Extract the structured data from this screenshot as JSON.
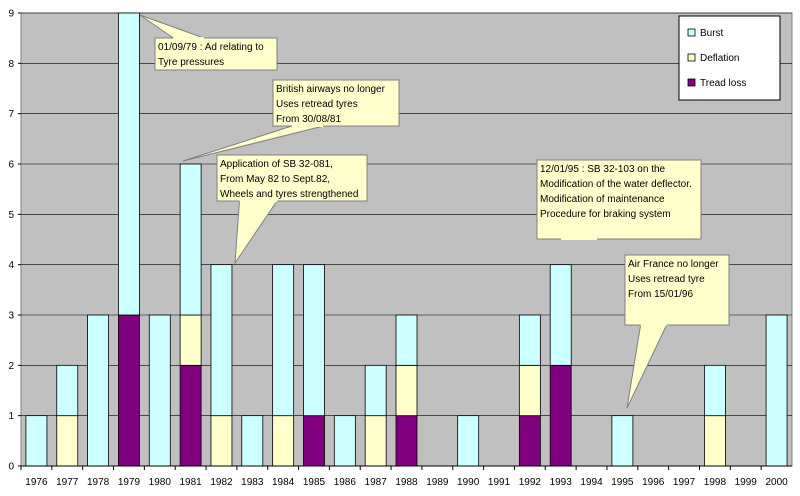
{
  "chart_data": {
    "type": "bar",
    "stacked": true,
    "categories": [
      "1976",
      "1977",
      "1978",
      "1979",
      "1980",
      "1981",
      "1982",
      "1983",
      "1984",
      "1985",
      "1986",
      "1987",
      "1988",
      "1989",
      "1990",
      "1991",
      "1992",
      "1993",
      "1994",
      "1995",
      "1996",
      "1997",
      "1998",
      "1999",
      "2000"
    ],
    "series": [
      {
        "name": "Tread loss",
        "color": "#800080",
        "values": [
          0,
          0,
          0,
          3,
          0,
          2,
          0,
          0,
          0,
          1,
          0,
          0,
          1,
          0,
          0,
          0,
          1,
          2,
          0,
          0,
          0,
          0,
          0,
          0,
          0
        ]
      },
      {
        "name": "Deflation",
        "color": "#FFFFCC",
        "values": [
          0,
          1,
          0,
          0,
          0,
          1,
          1,
          0,
          1,
          0,
          0,
          1,
          1,
          0,
          0,
          0,
          1,
          0,
          0,
          0,
          0,
          0,
          1,
          0,
          0
        ]
      },
      {
        "name": "Burst",
        "color": "#CCFFFF",
        "values": [
          1,
          1,
          3,
          6,
          3,
          3,
          3,
          1,
          3,
          3,
          1,
          1,
          1,
          0,
          1,
          0,
          1,
          2,
          0,
          1,
          0,
          0,
          1,
          0,
          3
        ]
      }
    ],
    "legend_order": [
      "Burst",
      "Deflation",
      "Tread loss"
    ],
    "ylim": [
      0,
      9
    ],
    "yticks": [
      "0",
      "1",
      "2",
      "3",
      "4",
      "5",
      "6",
      "7",
      "8",
      "9"
    ],
    "grid": true,
    "legend_position": "top-right",
    "plot_background": "#C0C0C0",
    "callout_fill": "#FFFFCC",
    "annotations": [
      {
        "category": "1979",
        "value": 9,
        "lines": [
          "01/09/79 :  Ad relating to",
          "Tyre pressures"
        ]
      },
      {
        "category": "1981",
        "value": 6,
        "lines": [
          "British airways no longer",
          "Uses retread tyres",
          "From 30/08/81"
        ]
      },
      {
        "category": "1982",
        "value": 4,
        "lines": [
          "Application of SB 32-081,",
          "From May 82 to Sept.82,",
          "Wheels and tyres strengthened"
        ]
      },
      {
        "category": "1993",
        "value": 4,
        "lines": [
          "12/01/95 :  SB 32-103 on the",
          "Modification of the water deflector.",
          "Modification of maintenance",
          "Procedure for braking system"
        ]
      },
      {
        "category": "1995",
        "value": 1,
        "lines": [
          "Air France no longer",
          "Uses retread tyre",
          "From 15/01/96"
        ]
      }
    ]
  }
}
